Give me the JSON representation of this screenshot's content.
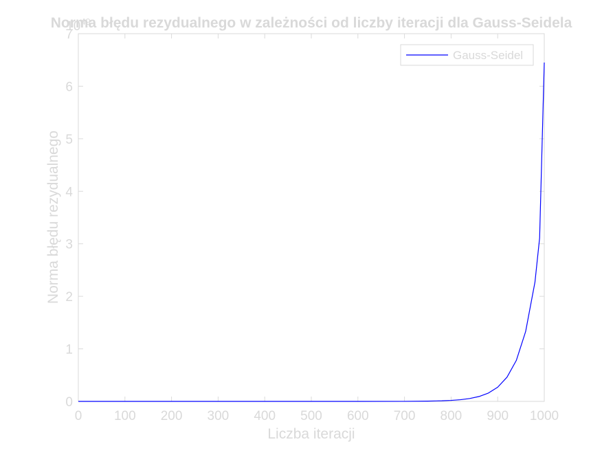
{
  "chart_data": {
    "type": "line",
    "title": "Norma błędu rezydualnego w zależności od liczby iteracji dla Gauss-Seidela",
    "xlabel": "Liczba iteracji",
    "ylabel": "Norma błędu rezydualnego",
    "y_exponent_label": "×10^49",
    "y_exponent_base": "10",
    "y_exponent_power": "49",
    "xlim": [
      0,
      1000
    ],
    "ylim": [
      0,
      7
    ],
    "xticks": [
      0,
      100,
      200,
      300,
      400,
      500,
      600,
      700,
      800,
      900,
      1000
    ],
    "yticks": [
      0,
      1,
      2,
      3,
      4,
      5,
      6,
      7
    ],
    "grid": false,
    "legend": {
      "position": "top-right"
    },
    "series": [
      {
        "name": "Gauss-Seidel",
        "color": "#0000ff",
        "x": [
          0,
          100,
          200,
          300,
          400,
          500,
          600,
          700,
          750,
          780,
          800,
          820,
          840,
          860,
          880,
          900,
          920,
          940,
          960,
          980,
          990,
          1000
        ],
        "y": [
          0,
          0,
          0,
          0,
          0,
          0,
          0,
          0.001,
          0.005,
          0.011,
          0.019,
          0.032,
          0.055,
          0.093,
          0.158,
          0.27,
          0.46,
          0.78,
          1.33,
          2.27,
          3.11,
          6.45
        ]
      }
    ]
  },
  "colors": {
    "axis": "#dadada",
    "text": "#d9d9d9",
    "line": "#0000ff",
    "background": "#ffffff"
  }
}
